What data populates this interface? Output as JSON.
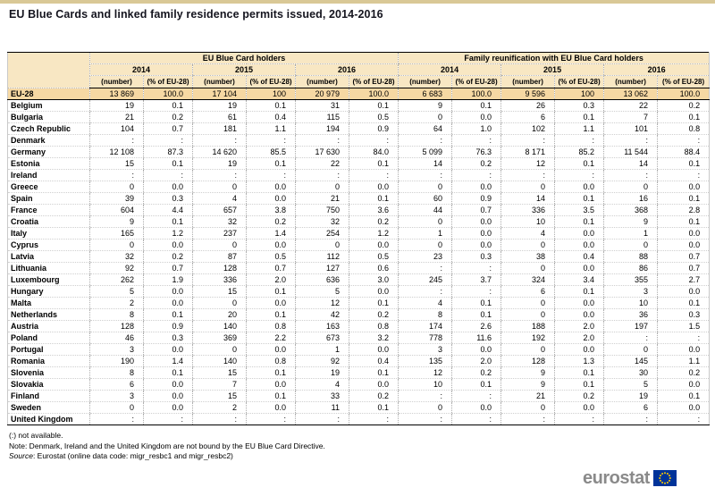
{
  "page": {
    "title": "EU Blue Cards and linked family residence permits issued, 2014-2016"
  },
  "table": {
    "group_headers": [
      "EU Blue Card holders",
      "Family reunification with EU Blue Card holders"
    ],
    "years": [
      "2014",
      "2015",
      "2016"
    ],
    "sub_headers": [
      "(number)",
      "(% of EU-28)"
    ],
    "rows": [
      {
        "country": "EU-28",
        "highlight": true,
        "values": [
          "13 869",
          "100.0",
          "17 104",
          "100",
          "20 979",
          "100.0",
          "6 683",
          "100.0",
          "9 596",
          "100",
          "13 062",
          "100.0"
        ]
      },
      {
        "country": "Belgium",
        "values": [
          "19",
          "0.1",
          "19",
          "0.1",
          "31",
          "0.1",
          "9",
          "0.1",
          "26",
          "0.3",
          "22",
          "0.2"
        ]
      },
      {
        "country": "Bulgaria",
        "values": [
          "21",
          "0.2",
          "61",
          "0.4",
          "115",
          "0.5",
          "0",
          "0.0",
          "6",
          "0.1",
          "7",
          "0.1"
        ]
      },
      {
        "country": "Czech Republic",
        "values": [
          "104",
          "0.7",
          "181",
          "1.1",
          "194",
          "0.9",
          "64",
          "1.0",
          "102",
          "1.1",
          "101",
          "0.8"
        ]
      },
      {
        "country": "Denmark",
        "values": [
          ":",
          ":",
          ":",
          ":",
          ":",
          ":",
          ":",
          ":",
          ":",
          ":",
          ":",
          ":"
        ]
      },
      {
        "country": "Germany",
        "values": [
          "12 108",
          "87.3",
          "14 620",
          "85.5",
          "17 630",
          "84.0",
          "5 099",
          "76.3",
          "8 171",
          "85.2",
          "11 544",
          "88.4"
        ]
      },
      {
        "country": "Estonia",
        "values": [
          "15",
          "0.1",
          "19",
          "0.1",
          "22",
          "0.1",
          "14",
          "0.2",
          "12",
          "0.1",
          "14",
          "0.1"
        ]
      },
      {
        "country": "Ireland",
        "values": [
          ":",
          ":",
          ":",
          ":",
          ":",
          ":",
          ":",
          ":",
          ":",
          ":",
          ":",
          ":"
        ]
      },
      {
        "country": "Greece",
        "values": [
          "0",
          "0.0",
          "0",
          "0.0",
          "0",
          "0.0",
          "0",
          "0.0",
          "0",
          "0.0",
          "0",
          "0.0"
        ]
      },
      {
        "country": "Spain",
        "values": [
          "39",
          "0.3",
          "4",
          "0.0",
          "21",
          "0.1",
          "60",
          "0.9",
          "14",
          "0.1",
          "16",
          "0.1"
        ]
      },
      {
        "country": "France",
        "values": [
          "604",
          "4.4",
          "657",
          "3.8",
          "750",
          "3.6",
          "44",
          "0.7",
          "336",
          "3.5",
          "368",
          "2.8"
        ]
      },
      {
        "country": "Croatia",
        "values": [
          "9",
          "0.1",
          "32",
          "0.2",
          "32",
          "0.2",
          "0",
          "0.0",
          "10",
          "0.1",
          "9",
          "0.1"
        ]
      },
      {
        "country": "Italy",
        "values": [
          "165",
          "1.2",
          "237",
          "1.4",
          "254",
          "1.2",
          "1",
          "0.0",
          "4",
          "0.0",
          "1",
          "0.0"
        ]
      },
      {
        "country": "Cyprus",
        "values": [
          "0",
          "0.0",
          "0",
          "0.0",
          "0",
          "0.0",
          "0",
          "0.0",
          "0",
          "0.0",
          "0",
          "0.0"
        ]
      },
      {
        "country": "Latvia",
        "values": [
          "32",
          "0.2",
          "87",
          "0.5",
          "112",
          "0.5",
          "23",
          "0.3",
          "38",
          "0.4",
          "88",
          "0.7"
        ]
      },
      {
        "country": "Lithuania",
        "values": [
          "92",
          "0.7",
          "128",
          "0.7",
          "127",
          "0.6",
          ":",
          ":",
          "0",
          "0.0",
          "86",
          "0.7"
        ]
      },
      {
        "country": "Luxembourg",
        "values": [
          "262",
          "1.9",
          "336",
          "2.0",
          "636",
          "3.0",
          "245",
          "3.7",
          "324",
          "3.4",
          "355",
          "2.7"
        ]
      },
      {
        "country": "Hungary",
        "values": [
          "5",
          "0.0",
          "15",
          "0.1",
          "5",
          "0.0",
          ":",
          ":",
          "6",
          "0.1",
          "3",
          "0.0"
        ]
      },
      {
        "country": "Malta",
        "values": [
          "2",
          "0.0",
          "0",
          "0.0",
          "12",
          "0.1",
          "4",
          "0.1",
          "0",
          "0.0",
          "10",
          "0.1"
        ]
      },
      {
        "country": "Netherlands",
        "values": [
          "8",
          "0.1",
          "20",
          "0.1",
          "42",
          "0.2",
          "8",
          "0.1",
          "0",
          "0.0",
          "36",
          "0.3"
        ]
      },
      {
        "country": "Austria",
        "values": [
          "128",
          "0.9",
          "140",
          "0.8",
          "163",
          "0.8",
          "174",
          "2.6",
          "188",
          "2.0",
          "197",
          "1.5"
        ]
      },
      {
        "country": "Poland",
        "values": [
          "46",
          "0.3",
          "369",
          "2.2",
          "673",
          "3.2",
          "778",
          "11.6",
          "192",
          "2.0",
          ":",
          ":"
        ]
      },
      {
        "country": "Portugal",
        "values": [
          "3",
          "0.0",
          "0",
          "0.0",
          "1",
          "0.0",
          "3",
          "0.0",
          "0",
          "0.0",
          "0",
          "0.0"
        ]
      },
      {
        "country": "Romania",
        "values": [
          "190",
          "1.4",
          "140",
          "0.8",
          "92",
          "0.4",
          "135",
          "2.0",
          "128",
          "1.3",
          "145",
          "1.1"
        ]
      },
      {
        "country": "Slovenia",
        "values": [
          "8",
          "0.1",
          "15",
          "0.1",
          "19",
          "0.1",
          "12",
          "0.2",
          "9",
          "0.1",
          "30",
          "0.2"
        ]
      },
      {
        "country": "Slovakia",
        "values": [
          "6",
          "0.0",
          "7",
          "0.0",
          "4",
          "0.0",
          "10",
          "0.1",
          "9",
          "0.1",
          "5",
          "0.0"
        ]
      },
      {
        "country": "Finland",
        "values": [
          "3",
          "0.0",
          "15",
          "0.1",
          "33",
          "0.2",
          ":",
          ":",
          "21",
          "0.2",
          "19",
          "0.1"
        ]
      },
      {
        "country": "Sweden",
        "values": [
          "0",
          "0.0",
          "2",
          "0.0",
          "11",
          "0.1",
          "0",
          "0.0",
          "0",
          "0.0",
          "6",
          "0.0"
        ]
      },
      {
        "country": "United Kingdom",
        "values": [
          ":",
          ":",
          ":",
          ":",
          ":",
          ":",
          ":",
          ":",
          ":",
          ":",
          ":",
          ":"
        ]
      }
    ]
  },
  "footnotes": {
    "not_available": "(:) not available.",
    "note": "Note: Denmark, Ireland and the United Kingdom are not bound by the EU Blue Card Directive.",
    "source_label": "Source",
    "source_rest": ": Eurostat (online data code: migr_resbc1 and migr_resbc2)"
  },
  "logo": {
    "text": "eurostat"
  },
  "colors": {
    "header_bg": "#F8E7C3",
    "eu28_row_bg": "#F6D8A3",
    "top_bar": "#D9C896",
    "flag_blue": "#003399",
    "star_yellow": "#FFCC00",
    "logo_gray": "#8A8A8A"
  }
}
